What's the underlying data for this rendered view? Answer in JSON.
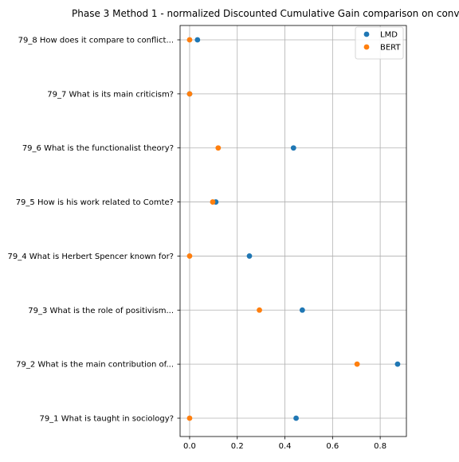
{
  "chart_data": {
    "type": "scatter",
    "title": "Phase 3 Method 1 - normalized Discounted Cumulative Gain comparison on conv",
    "xlabel": "",
    "ylabel": "",
    "xlim": [
      -0.04,
      0.91
    ],
    "xticks": [
      0.0,
      0.2,
      0.4,
      0.6,
      0.8
    ],
    "xtick_labels": [
      "0.0",
      "0.2",
      "0.4",
      "0.6",
      "0.8"
    ],
    "grid": true,
    "legend_position": "top-right",
    "categories": [
      "79_1 What is taught in sociology?",
      "79_2 What is the main contribution of...",
      "79_3 What is the role of positivism...",
      "79_4 What is Herbert Spencer known for?",
      "79_5 How is his work related to Comte?",
      "79_6 What is the functionalist theory?",
      "79_7 What is its main criticism?",
      "79_8 How does it compare to conflict..."
    ],
    "series": [
      {
        "name": "LMD",
        "color": "#1f77b4",
        "values": [
          0.447,
          0.873,
          0.473,
          0.251,
          0.11,
          0.436,
          0.0,
          0.033
        ]
      },
      {
        "name": "BERT",
        "color": "#ff7f0e",
        "values": [
          0.0,
          0.703,
          0.293,
          0.0,
          0.097,
          0.12,
          0.0,
          0.0
        ]
      }
    ]
  }
}
